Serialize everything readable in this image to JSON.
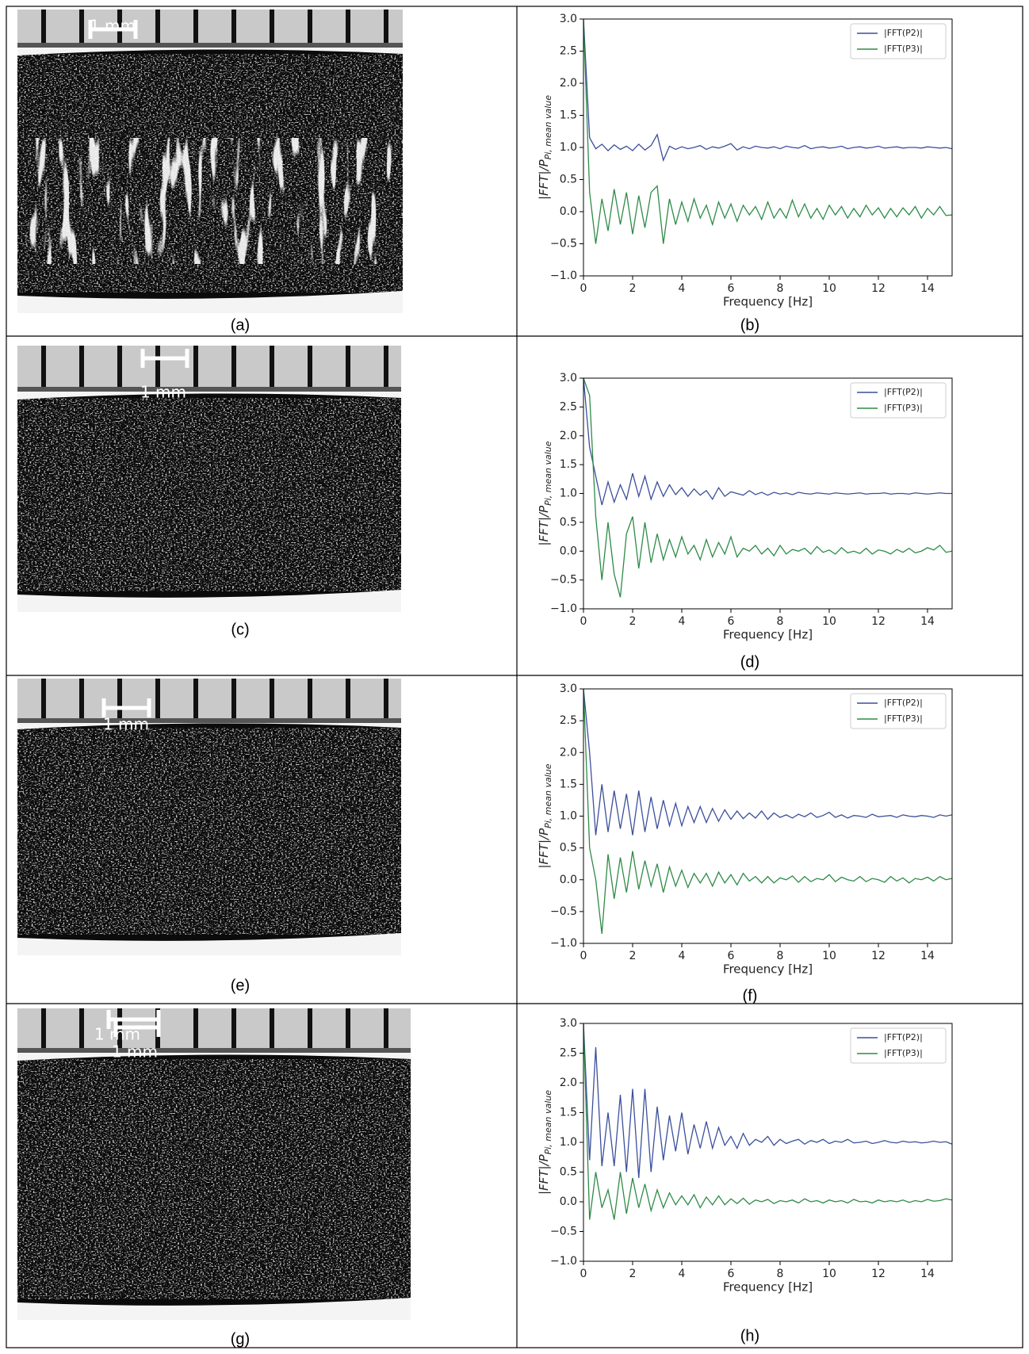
{
  "photos": [
    {
      "scale_labels": [
        "1 mm"
      ],
      "caption": "(a)"
    },
    {
      "scale_labels": [
        "1 mm"
      ],
      "caption": "(c)"
    },
    {
      "scale_labels": [
        "1 mm"
      ],
      "caption": "(e)"
    },
    {
      "scale_labels": [
        "1 mm",
        "1 mm"
      ],
      "caption": "(g)"
    }
  ],
  "chart_data": [
    {
      "type": "line",
      "caption": "(b)",
      "xlabel": "Frequency [Hz]",
      "ylabel": {
        "main": "|FFT|/P",
        "sub": "Pi, mean value"
      },
      "xlim": [
        0,
        15
      ],
      "ylim": [
        -1,
        3
      ],
      "xticks": [
        0,
        2,
        4,
        6,
        8,
        10,
        12,
        14
      ],
      "yticks": [
        {
          "value": -1,
          "label": "−1.0"
        },
        {
          "value": -0.5,
          "label": "−0.5"
        },
        {
          "value": 0,
          "label": "0.0"
        },
        {
          "value": 0.5,
          "label": "0.5"
        },
        {
          "value": 1,
          "label": "1.0"
        },
        {
          "value": 1.5,
          "label": "1.5"
        },
        {
          "value": 2,
          "label": "2.0"
        },
        {
          "value": 2.5,
          "label": "2.5"
        },
        {
          "value": 3,
          "label": "3.0"
        }
      ],
      "legend": "upper right",
      "x": [
        0,
        0.25,
        0.5,
        0.75,
        1,
        1.25,
        1.5,
        1.75,
        2,
        2.25,
        2.5,
        2.75,
        3,
        3.25,
        3.5,
        3.75,
        4,
        4.25,
        4.5,
        4.75,
        5,
        5.25,
        5.5,
        5.75,
        6,
        6.25,
        6.5,
        6.75,
        7,
        7.25,
        7.5,
        7.75,
        8,
        8.25,
        8.5,
        8.75,
        9,
        9.25,
        9.5,
        9.75,
        10,
        10.25,
        10.5,
        10.75,
        11,
        11.25,
        11.5,
        11.75,
        12,
        12.25,
        12.5,
        12.75,
        13,
        13.25,
        13.5,
        13.75,
        14,
        14.25,
        14.5,
        14.75,
        15
      ],
      "series": [
        {
          "name": "|FFT(P2)|",
          "color": "#3b4f9c",
          "values": [
            3.0,
            1.15,
            0.98,
            1.05,
            0.95,
            1.04,
            0.97,
            1.02,
            0.95,
            1.05,
            0.96,
            1.03,
            1.2,
            0.8,
            1.02,
            0.97,
            1.01,
            0.98,
            1.0,
            1.03,
            0.97,
            1.01,
            0.99,
            1.02,
            1.06,
            0.96,
            1.01,
            0.98,
            1.02,
            1.0,
            0.99,
            1.01,
            0.98,
            1.02,
            1.0,
            0.99,
            1.03,
            0.98,
            1.0,
            1.01,
            0.99,
            1.0,
            1.02,
            0.98,
            1.0,
            1.01,
            0.99,
            1.0,
            1.02,
            0.99,
            1.0,
            1.01,
            0.99,
            1.0,
            1.0,
            0.99,
            1.01,
            1.0,
            0.99,
            1.0,
            0.98
          ]
        },
        {
          "name": "|FFT(P3)|",
          "color": "#2e8b47",
          "values": [
            3.0,
            0.3,
            -0.5,
            0.2,
            -0.3,
            0.35,
            -0.2,
            0.3,
            -0.35,
            0.25,
            -0.25,
            0.3,
            0.4,
            -0.5,
            0.2,
            -0.2,
            0.15,
            -0.15,
            0.2,
            -0.1,
            0.1,
            -0.2,
            0.15,
            -0.1,
            0.12,
            -0.15,
            0.1,
            -0.05,
            0.08,
            -0.12,
            0.15,
            -0.1,
            0.05,
            -0.1,
            0.18,
            -0.08,
            0.12,
            -0.1,
            0.05,
            -0.12,
            0.1,
            -0.05,
            0.08,
            -0.1,
            0.05,
            -0.08,
            0.1,
            -0.05,
            0.06,
            -0.1,
            0.05,
            -0.08,
            0.06,
            -0.05,
            0.08,
            -0.1,
            0.05,
            -0.05,
            0.08,
            -0.06,
            -0.05
          ]
        }
      ]
    },
    {
      "type": "line",
      "caption": "(d)",
      "xlabel": "Frequency [Hz]",
      "ylabel": {
        "main": "|FFT|/P",
        "sub": "Pi, mean value"
      },
      "xlim": [
        0,
        15
      ],
      "ylim": [
        -1,
        3
      ],
      "xticks": [
        0,
        2,
        4,
        6,
        8,
        10,
        12,
        14
      ],
      "yticks": [
        {
          "value": -1,
          "label": "−1.0"
        },
        {
          "value": -0.5,
          "label": "−0.5"
        },
        {
          "value": 0,
          "label": "0.0"
        },
        {
          "value": 0.5,
          "label": "0.5"
        },
        {
          "value": 1,
          "label": "1.0"
        },
        {
          "value": 1.5,
          "label": "1.5"
        },
        {
          "value": 2,
          "label": "2.0"
        },
        {
          "value": 2.5,
          "label": "2.5"
        },
        {
          "value": 3,
          "label": "3.0"
        }
      ],
      "legend": "upper right",
      "x": [
        0,
        0.25,
        0.5,
        0.75,
        1,
        1.25,
        1.5,
        1.75,
        2,
        2.25,
        2.5,
        2.75,
        3,
        3.25,
        3.5,
        3.75,
        4,
        4.25,
        4.5,
        4.75,
        5,
        5.25,
        5.5,
        5.75,
        6,
        6.25,
        6.5,
        6.75,
        7,
        7.25,
        7.5,
        7.75,
        8,
        8.25,
        8.5,
        8.75,
        9,
        9.25,
        9.5,
        9.75,
        10,
        10.25,
        10.5,
        10.75,
        11,
        11.25,
        11.5,
        11.75,
        12,
        12.25,
        12.5,
        12.75,
        13,
        13.25,
        13.5,
        13.75,
        14,
        14.25,
        14.5,
        14.75,
        15
      ],
      "series": [
        {
          "name": "|FFT(P2)|",
          "color": "#3b4f9c",
          "values": [
            3.0,
            1.8,
            1.3,
            0.8,
            1.2,
            0.85,
            1.15,
            0.9,
            1.35,
            0.95,
            1.3,
            0.9,
            1.2,
            0.95,
            1.15,
            0.98,
            1.1,
            0.95,
            1.08,
            0.97,
            1.05,
            0.9,
            1.1,
            0.95,
            1.03,
            1.0,
            0.97,
            1.05,
            0.98,
            1.02,
            0.97,
            1.02,
            0.99,
            1.01,
            0.98,
            1.02,
            1.0,
            0.99,
            1.01,
            1.0,
            0.99,
            1.01,
            1.0,
            0.99,
            1.0,
            1.01,
            0.99,
            1.0,
            1.0,
            1.01,
            0.99,
            1.0,
            1.0,
            0.99,
            1.01,
            1.0,
            0.99,
            1.0,
            1.01,
            1.0,
            1.0
          ]
        },
        {
          "name": "|FFT(P3)|",
          "color": "#2e8b47",
          "values": [
            3.0,
            2.7,
            0.6,
            -0.5,
            0.5,
            -0.4,
            -0.8,
            0.3,
            0.6,
            -0.3,
            0.5,
            -0.2,
            0.3,
            -0.15,
            0.2,
            -0.1,
            0.25,
            -0.05,
            0.1,
            -0.15,
            0.2,
            -0.1,
            0.15,
            -0.05,
            0.25,
            -0.1,
            0.05,
            0.0,
            0.1,
            -0.05,
            0.05,
            -0.08,
            0.1,
            -0.05,
            0.03,
            0.0,
            0.05,
            -0.05,
            0.08,
            -0.02,
            0.02,
            -0.05,
            0.06,
            -0.03,
            0.0,
            -0.04,
            0.05,
            -0.05,
            0.02,
            0.0,
            -0.05,
            0.03,
            -0.02,
            0.05,
            -0.03,
            0.0,
            0.06,
            0.02,
            0.1,
            -0.02,
            0.0
          ]
        }
      ]
    },
    {
      "type": "line",
      "caption": "(f)",
      "xlabel": "Frequency [Hz]",
      "ylabel": {
        "main": "|FFT|/P",
        "sub": "Pi, mean value"
      },
      "xlim": [
        0,
        15
      ],
      "ylim": [
        -1,
        3
      ],
      "xticks": [
        0,
        2,
        4,
        6,
        8,
        10,
        12,
        14
      ],
      "yticks": [
        {
          "value": -1,
          "label": "−1.0"
        },
        {
          "value": -0.5,
          "label": "−0.5"
        },
        {
          "value": 0,
          "label": "0.0"
        },
        {
          "value": 0.5,
          "label": "0.5"
        },
        {
          "value": 1,
          "label": "1.0"
        },
        {
          "value": 1.5,
          "label": "1.5"
        },
        {
          "value": 2,
          "label": "2.0"
        },
        {
          "value": 2.5,
          "label": "2.5"
        },
        {
          "value": 3,
          "label": "3.0"
        }
      ],
      "legend": "upper right",
      "x": [
        0,
        0.25,
        0.5,
        0.75,
        1,
        1.25,
        1.5,
        1.75,
        2,
        2.25,
        2.5,
        2.75,
        3,
        3.25,
        3.5,
        3.75,
        4,
        4.25,
        4.5,
        4.75,
        5,
        5.25,
        5.5,
        5.75,
        6,
        6.25,
        6.5,
        6.75,
        7,
        7.25,
        7.5,
        7.75,
        8,
        8.25,
        8.5,
        8.75,
        9,
        9.25,
        9.5,
        9.75,
        10,
        10.25,
        10.5,
        10.75,
        11,
        11.25,
        11.5,
        11.75,
        12,
        12.25,
        12.5,
        12.75,
        13,
        13.25,
        13.5,
        13.75,
        14,
        14.25,
        14.5,
        14.75,
        15
      ],
      "series": [
        {
          "name": "|FFT(P2)|",
          "color": "#3b4f9c",
          "values": [
            3.0,
            2.0,
            0.7,
            1.5,
            0.75,
            1.4,
            0.8,
            1.35,
            0.7,
            1.4,
            0.75,
            1.3,
            0.8,
            1.25,
            0.85,
            1.2,
            0.85,
            1.15,
            0.9,
            1.15,
            0.9,
            1.12,
            0.92,
            1.1,
            0.95,
            1.08,
            0.96,
            1.05,
            0.97,
            1.08,
            0.95,
            1.05,
            0.98,
            1.02,
            0.97,
            1.03,
            0.99,
            1.05,
            0.98,
            1.01,
            1.06,
            0.98,
            1.02,
            0.97,
            1.01,
            1.0,
            0.98,
            1.03,
            0.99,
            1.0,
            1.01,
            0.98,
            1.02,
            1.0,
            0.99,
            1.01,
            1.0,
            0.98,
            1.02,
            1.0,
            1.02
          ]
        },
        {
          "name": "|FFT(P3)|",
          "color": "#2e8b47",
          "values": [
            3.0,
            0.5,
            0.0,
            -0.85,
            0.4,
            -0.3,
            0.35,
            -0.2,
            0.45,
            -0.15,
            0.3,
            -0.1,
            0.25,
            -0.2,
            0.2,
            -0.1,
            0.15,
            -0.12,
            0.1,
            -0.05,
            0.1,
            -0.1,
            0.12,
            -0.05,
            0.08,
            -0.08,
            0.1,
            -0.02,
            0.05,
            -0.05,
            0.05,
            -0.05,
            0.03,
            0.0,
            0.06,
            -0.04,
            0.05,
            -0.03,
            0.02,
            0.0,
            0.08,
            -0.03,
            0.04,
            0.0,
            -0.02,
            0.05,
            -0.03,
            0.02,
            0.0,
            -0.04,
            0.05,
            -0.02,
            0.03,
            -0.05,
            0.02,
            0.0,
            0.04,
            -0.02,
            0.05,
            0.0,
            0.02
          ]
        }
      ]
    },
    {
      "type": "line",
      "caption": "(h)",
      "xlabel": "Frequency [Hz]",
      "ylabel": {
        "main": "|FFT|/P",
        "sub": "Pi, mean value"
      },
      "xlim": [
        0,
        15
      ],
      "ylim": [
        -1,
        3
      ],
      "xticks": [
        0,
        2,
        4,
        6,
        8,
        10,
        12,
        14
      ],
      "yticks": [
        {
          "value": -1,
          "label": "−1.0"
        },
        {
          "value": -0.5,
          "label": "−0.5"
        },
        {
          "value": 0,
          "label": "0.0"
        },
        {
          "value": 0.5,
          "label": "0.5"
        },
        {
          "value": 1,
          "label": "1.0"
        },
        {
          "value": 1.5,
          "label": "1.5"
        },
        {
          "value": 2,
          "label": "2.0"
        },
        {
          "value": 2.5,
          "label": "2.5"
        },
        {
          "value": 3,
          "label": "3.0"
        }
      ],
      "legend": "upper right",
      "x": [
        0,
        0.25,
        0.5,
        0.75,
        1,
        1.25,
        1.5,
        1.75,
        2,
        2.25,
        2.5,
        2.75,
        3,
        3.25,
        3.5,
        3.75,
        4,
        4.25,
        4.5,
        4.75,
        5,
        5.25,
        5.5,
        5.75,
        6,
        6.25,
        6.5,
        6.75,
        7,
        7.25,
        7.5,
        7.75,
        8,
        8.25,
        8.5,
        8.75,
        9,
        9.25,
        9.5,
        9.75,
        10,
        10.25,
        10.5,
        10.75,
        11,
        11.25,
        11.5,
        11.75,
        12,
        12.25,
        12.5,
        12.75,
        13,
        13.25,
        13.5,
        13.75,
        14,
        14.25,
        14.5,
        14.75,
        15
      ],
      "series": [
        {
          "name": "|FFT(P2)|",
          "color": "#3b4f9c",
          "values": [
            3.0,
            0.7,
            2.6,
            0.6,
            1.5,
            0.6,
            1.8,
            0.5,
            1.9,
            0.4,
            1.9,
            0.5,
            1.6,
            0.7,
            1.45,
            0.85,
            1.5,
            0.8,
            1.3,
            0.9,
            1.35,
            0.9,
            1.25,
            0.95,
            1.1,
            0.9,
            1.15,
            0.95,
            1.05,
            1.0,
            1.1,
            0.95,
            1.05,
            0.98,
            1.02,
            1.05,
            0.97,
            1.03,
            1.0,
            1.05,
            0.98,
            1.02,
            1.0,
            1.05,
            0.99,
            1.0,
            1.02,
            0.98,
            1.0,
            1.03,
            1.0,
            0.99,
            1.02,
            1.0,
            1.01,
            0.99,
            1.0,
            1.02,
            1.0,
            1.01,
            0.97
          ]
        },
        {
          "name": "|FFT(P3)|",
          "color": "#2e8b47",
          "values": [
            3.0,
            -0.3,
            0.5,
            -0.1,
            0.2,
            -0.3,
            0.5,
            -0.2,
            0.4,
            -0.1,
            0.3,
            -0.15,
            0.2,
            -0.1,
            0.15,
            -0.05,
            0.1,
            -0.05,
            0.12,
            -0.1,
            0.08,
            -0.05,
            0.1,
            -0.05,
            0.05,
            -0.03,
            0.06,
            -0.04,
            0.03,
            0.0,
            0.04,
            -0.03,
            0.02,
            0.0,
            0.03,
            -0.02,
            0.05,
            0.0,
            0.02,
            -0.02,
            0.03,
            0.0,
            0.02,
            -0.02,
            0.04,
            0.0,
            0.01,
            -0.02,
            0.03,
            0.0,
            0.02,
            0.0,
            0.03,
            -0.01,
            0.02,
            0.0,
            0.04,
            0.01,
            0.02,
            0.05,
            0.03
          ]
        }
      ]
    }
  ]
}
